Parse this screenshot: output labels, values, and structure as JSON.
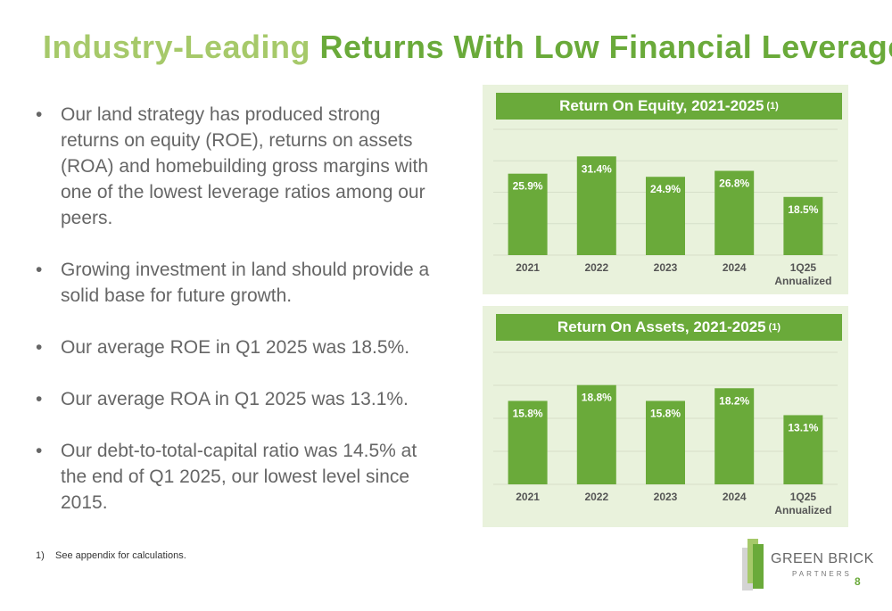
{
  "title": {
    "part1": "Industry-Leading",
    "part2": "Returns With Low Financial Leverage"
  },
  "bullets": [
    "Our land strategy has produced strong returns on equity (ROE), returns on assets (ROA) and homebuilding gross margins with one of the lowest leverage ratios among our peers.",
    "Growing investment in land should provide a solid base for future growth.",
    "Our average ROE in Q1 2025 was 18.5%.",
    "Our average ROA in Q1 2025 was 13.1%.",
    "Our debt-to-total-capital ratio was 14.5% at the end of Q1 2025, our lowest level since 2015."
  ],
  "bullet_symbol": "•",
  "footnote": {
    "number": "1)",
    "text": "See appendix for calculations."
  },
  "logo": {
    "name": "GREEN BRICK",
    "sub": "PARTNERS"
  },
  "page_number": "8",
  "colors": {
    "accent_light": "#a6c96a",
    "accent_dark": "#6aaa3a",
    "panel_bg": "#e9f2dc",
    "bar_fill": "#6aaa3a",
    "text_gray": "#666666"
  },
  "chart_data": [
    {
      "type": "bar",
      "title": "Return On Equity, 2021-2025",
      "title_footnote": "(1)",
      "categories": [
        "2021",
        "2022",
        "2023",
        "2024",
        "1Q25 Annualized"
      ],
      "values": [
        25.9,
        31.4,
        24.9,
        26.8,
        18.5
      ],
      "labels": [
        "25.9%",
        "31.4%",
        "24.9%",
        "26.8%",
        "18.5%"
      ],
      "ylim": [
        0,
        40
      ],
      "grid": true,
      "legend": "none"
    },
    {
      "type": "bar",
      "title": "Return On Assets, 2021-2025",
      "title_footnote": "(1)",
      "categories": [
        "2021",
        "2022",
        "2023",
        "2024",
        "1Q25 Annualized"
      ],
      "values": [
        15.8,
        18.8,
        15.8,
        18.2,
        13.1
      ],
      "labels": [
        "15.8%",
        "18.8%",
        "15.8%",
        "18.2%",
        "13.1%"
      ],
      "ylim": [
        0,
        25
      ],
      "grid": true,
      "legend": "none"
    }
  ]
}
